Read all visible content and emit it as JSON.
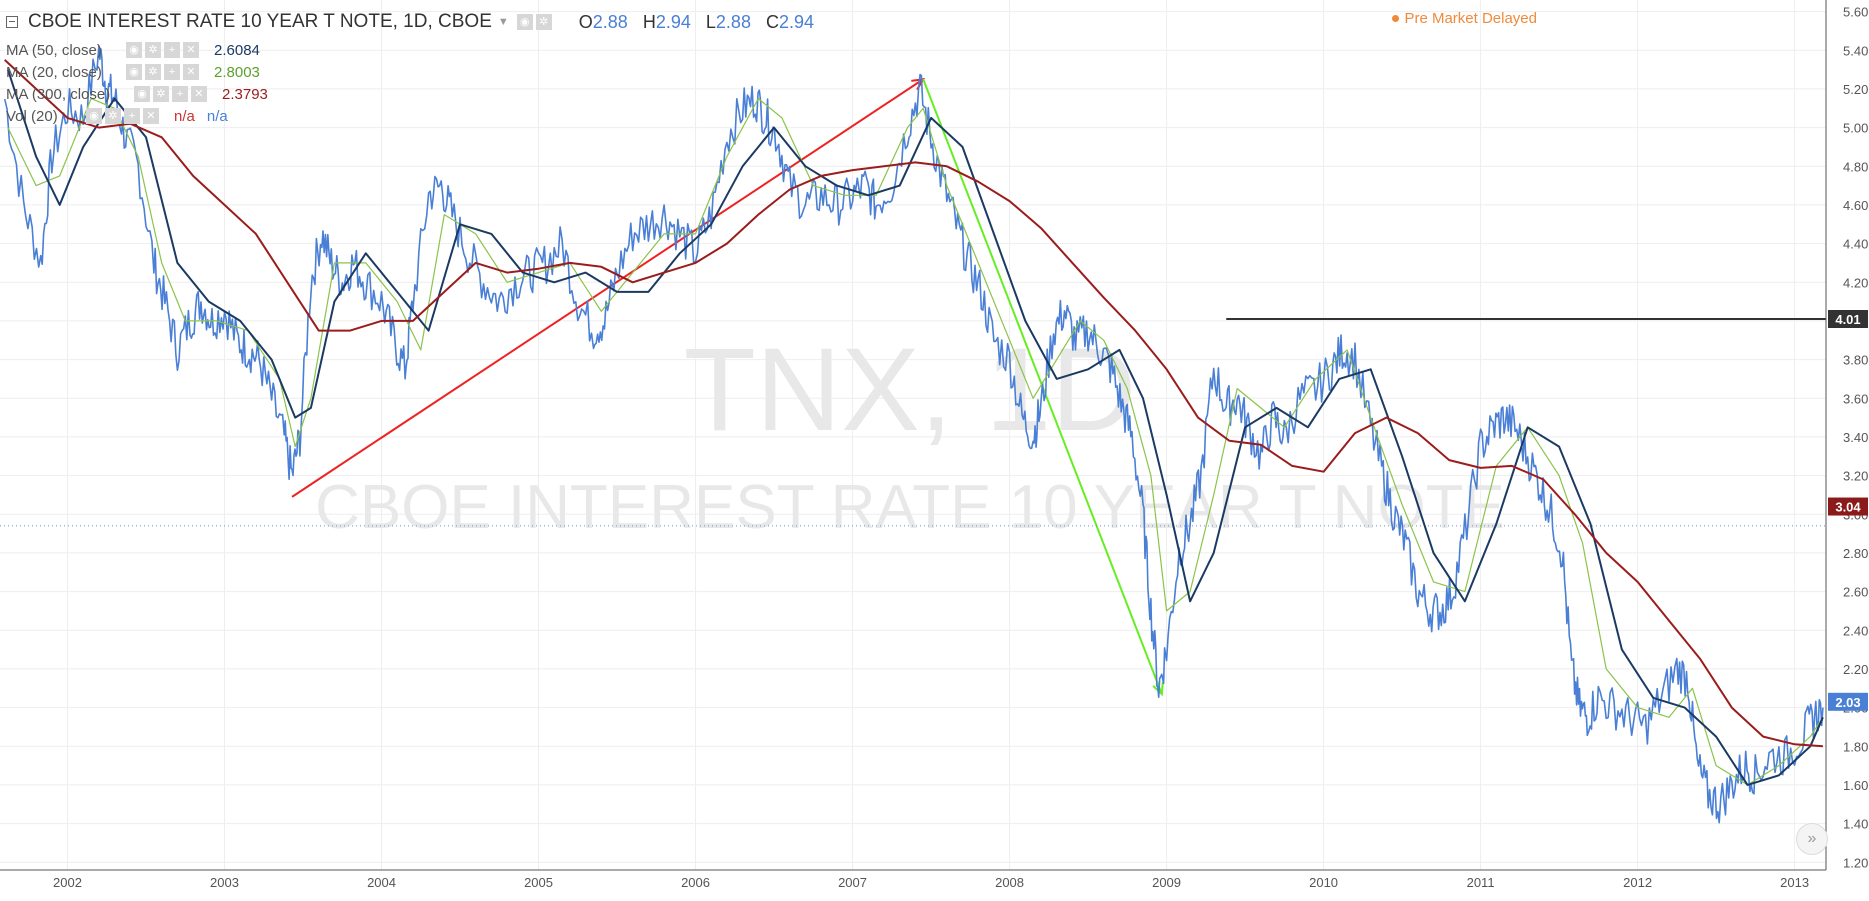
{
  "header": {
    "title": "CBOE INTEREST RATE 10 YEAR T NOTE, 1D, CBOE",
    "ohlc": [
      {
        "key": "O",
        "value": "2.88"
      },
      {
        "key": "H",
        "value": "2.94"
      },
      {
        "key": "L",
        "value": "2.88"
      },
      {
        "key": "C",
        "value": "2.94"
      }
    ],
    "status": "Pre Market  Delayed"
  },
  "studies": [
    {
      "label": "MA (50, close)",
      "value": "2.6084",
      "color": "#1b3a63"
    },
    {
      "label": "MA (20, close)",
      "value": "2.8003",
      "color": "#5aa02c"
    },
    {
      "label": "MA (300, close)",
      "value": "2.3793",
      "color": "#9b1c1c"
    },
    {
      "label": "Vol (20)",
      "value": "n/a",
      "value2": "n/a",
      "color": "#cc3333",
      "color2": "#4a7fd6"
    }
  ],
  "watermark": {
    "symbol": "TNX, 1D",
    "description": "CBOE INTEREST RATE 10 YEAR T NOTE"
  },
  "colors": {
    "price": "#4a7fd6",
    "ma20": "#8bc34a",
    "ma50": "#1b3a63",
    "ma300": "#9b1c1c",
    "trend_up": "#ee2222",
    "trend_down": "#66ee22",
    "hline": "#333333",
    "grid": "#eeeeee"
  },
  "chart_data": {
    "type": "line",
    "yaxis_ticks": [
      "1.20",
      "1.40",
      "1.60",
      "1.80",
      "2.00",
      "2.20",
      "2.40",
      "2.60",
      "2.80",
      "3.00",
      "3.20",
      "3.40",
      "3.60",
      "3.80",
      "4.00",
      "4.20",
      "4.40",
      "4.60",
      "4.80",
      "5.00",
      "5.20",
      "5.40",
      "5.60"
    ],
    "ylim": [
      1.16,
      5.66
    ],
    "xaxis_ticks": [
      "2002",
      "2003",
      "2004",
      "2005",
      "2006",
      "2007",
      "2008",
      "2009",
      "2010",
      "2011",
      "2012",
      "2013"
    ],
    "xlim": [
      2001.57,
      2013.2
    ],
    "grid": true,
    "series": [
      {
        "name": "TNX",
        "x": [
          2001.6,
          2001.72,
          2001.83,
          2001.9,
          2002.0,
          2002.1,
          2002.2,
          2002.25,
          2002.3,
          2002.37,
          2002.45,
          2002.55,
          2002.62,
          2002.7,
          2002.78,
          2002.85,
          2002.92,
          2003.0,
          2003.08,
          2003.15,
          2003.22,
          2003.3,
          2003.38,
          2003.43,
          2003.48,
          2003.55,
          2003.62,
          2003.68,
          2003.75,
          2003.82,
          2003.9,
          2004.0,
          2004.08,
          2004.15,
          2004.2,
          2004.3,
          2004.38,
          2004.45,
          2004.55,
          2004.65,
          2004.75,
          2004.85,
          2004.95,
          2005.05,
          2005.15,
          2005.25,
          2005.35,
          2005.42,
          2005.5,
          2005.6,
          2005.7,
          2005.8,
          2005.9,
          2006.0,
          2006.1,
          2006.2,
          2006.3,
          2006.38,
          2006.45,
          2006.52,
          2006.6,
          2006.7,
          2006.8,
          2006.9,
          2007.0,
          2007.08,
          2007.15,
          2007.25,
          2007.35,
          2007.43,
          2007.5,
          2007.58,
          2007.66,
          2007.74,
          2007.82,
          2007.9,
          2008.0,
          2008.08,
          2008.15,
          2008.2,
          2008.28,
          2008.35,
          2008.42,
          2008.5,
          2008.58,
          2008.65,
          2008.72,
          2008.78,
          2008.85,
          2008.9,
          2008.95,
          2009.0,
          2009.08,
          2009.15,
          2009.22,
          2009.3,
          2009.38,
          2009.45,
          2009.52,
          2009.6,
          2009.68,
          2009.75,
          2009.85,
          2009.95,
          2010.05,
          2010.12,
          2010.2,
          2010.3,
          2010.38,
          2010.45,
          2010.52,
          2010.6,
          2010.68,
          2010.75,
          2010.82,
          2010.9,
          2011.0,
          2011.08,
          2011.15,
          2011.22,
          2011.3,
          2011.38,
          2011.45,
          2011.52,
          2011.58,
          2011.63,
          2011.68,
          2011.75,
          2011.85,
          2011.95,
          2012.05,
          2012.15,
          2012.25,
          2012.32,
          2012.38,
          2012.45,
          2012.52,
          2012.6,
          2012.68,
          2012.75,
          2012.85,
          2012.95,
          2013.05,
          2013.12,
          2013.18
        ],
        "values": [
          5.15,
          4.6,
          4.3,
          4.85,
          5.1,
          5.05,
          5.4,
          5.2,
          5.15,
          4.95,
          4.8,
          4.3,
          4.1,
          3.85,
          4.0,
          4.1,
          4.0,
          4.05,
          3.9,
          3.85,
          3.8,
          3.6,
          3.4,
          3.2,
          3.4,
          4.2,
          4.45,
          4.3,
          4.2,
          4.3,
          4.2,
          4.1,
          3.9,
          3.75,
          4.1,
          4.65,
          4.7,
          4.55,
          4.35,
          4.2,
          4.1,
          4.2,
          4.25,
          4.3,
          4.4,
          4.1,
          3.95,
          4.0,
          4.25,
          4.45,
          4.5,
          4.55,
          4.45,
          4.35,
          4.55,
          4.95,
          5.1,
          5.15,
          5.05,
          4.95,
          4.7,
          4.6,
          4.65,
          4.6,
          4.65,
          4.7,
          4.6,
          4.7,
          5.0,
          5.2,
          4.95,
          4.7,
          4.5,
          4.3,
          4.15,
          3.9,
          3.8,
          3.5,
          3.4,
          3.55,
          3.95,
          4.05,
          3.9,
          3.95,
          3.85,
          3.75,
          3.55,
          3.4,
          3.0,
          2.5,
          2.1,
          2.3,
          2.8,
          2.95,
          3.2,
          3.75,
          3.55,
          3.6,
          3.45,
          3.3,
          3.5,
          3.4,
          3.6,
          3.65,
          3.75,
          3.85,
          3.8,
          3.45,
          3.2,
          3.0,
          2.85,
          2.6,
          2.5,
          2.5,
          2.6,
          2.9,
          3.35,
          3.45,
          3.5,
          3.45,
          3.3,
          3.15,
          3.0,
          2.8,
          2.2,
          2.0,
          1.95,
          2.05,
          2.0,
          1.95,
          1.9,
          2.05,
          2.2,
          2.15,
          1.7,
          1.55,
          1.5,
          1.6,
          1.7,
          1.65,
          1.75,
          1.75,
          1.85,
          1.95,
          2.0
        ]
      },
      {
        "name": "MA (20, close)",
        "x": [
          2001.62,
          2001.8,
          2001.95,
          2002.15,
          2002.3,
          2002.45,
          2002.6,
          2002.75,
          2002.95,
          2003.15,
          2003.35,
          2003.45,
          2003.55,
          2003.7,
          2003.9,
          2004.1,
          2004.25,
          2004.4,
          2004.6,
          2004.8,
          2005.0,
          2005.2,
          2005.4,
          2005.6,
          2005.8,
          2006.0,
          2006.2,
          2006.4,
          2006.55,
          2006.75,
          2006.95,
          2007.15,
          2007.35,
          2007.45,
          2007.6,
          2007.8,
          2008.0,
          2008.15,
          2008.3,
          2008.45,
          2008.6,
          2008.75,
          2008.9,
          2009.0,
          2009.15,
          2009.3,
          2009.45,
          2009.6,
          2009.75,
          2009.95,
          2010.15,
          2010.3,
          2010.5,
          2010.7,
          2010.9,
          2011.1,
          2011.3,
          2011.5,
          2011.65,
          2011.8,
          2012.0,
          2012.2,
          2012.35,
          2012.5,
          2012.7,
          2012.9,
          2013.1,
          2013.18
        ],
        "values": [
          5.0,
          4.7,
          4.75,
          5.15,
          5.1,
          4.85,
          4.3,
          4.0,
          4.0,
          3.95,
          3.7,
          3.35,
          3.6,
          4.3,
          4.3,
          4.1,
          3.85,
          4.55,
          4.45,
          4.2,
          4.25,
          4.3,
          4.05,
          4.25,
          4.45,
          4.45,
          4.85,
          5.15,
          5.05,
          4.7,
          4.65,
          4.65,
          5.0,
          5.1,
          4.7,
          4.3,
          3.9,
          3.6,
          3.8,
          4.0,
          3.9,
          3.65,
          3.2,
          2.5,
          2.6,
          3.1,
          3.65,
          3.55,
          3.45,
          3.7,
          3.85,
          3.5,
          3.05,
          2.65,
          2.6,
          3.25,
          3.45,
          3.2,
          2.85,
          2.2,
          2.0,
          1.95,
          2.1,
          1.7,
          1.6,
          1.7,
          1.85,
          1.95
        ]
      },
      {
        "name": "MA (50, close)",
        "x": [
          2001.62,
          2001.8,
          2001.95,
          2002.1,
          2002.3,
          2002.5,
          2002.7,
          2002.9,
          2003.1,
          2003.3,
          2003.45,
          2003.55,
          2003.7,
          2003.9,
          2004.1,
          2004.3,
          2004.5,
          2004.7,
          2004.9,
          2005.1,
          2005.3,
          2005.5,
          2005.7,
          2005.9,
          2006.1,
          2006.3,
          2006.5,
          2006.7,
          2006.9,
          2007.1,
          2007.3,
          2007.5,
          2007.7,
          2007.9,
          2008.1,
          2008.3,
          2008.5,
          2008.7,
          2008.85,
          2009.0,
          2009.15,
          2009.3,
          2009.5,
          2009.7,
          2009.9,
          2010.1,
          2010.3,
          2010.5,
          2010.7,
          2010.9,
          2011.1,
          2011.3,
          2011.5,
          2011.7,
          2011.9,
          2012.1,
          2012.3,
          2012.5,
          2012.7,
          2012.9,
          2013.1,
          2013.18
        ],
        "values": [
          5.3,
          4.85,
          4.6,
          4.9,
          5.15,
          4.95,
          4.3,
          4.1,
          4.0,
          3.8,
          3.5,
          3.55,
          4.1,
          4.35,
          4.15,
          3.95,
          4.5,
          4.45,
          4.25,
          4.2,
          4.25,
          4.15,
          4.15,
          4.35,
          4.5,
          4.8,
          5.0,
          4.8,
          4.7,
          4.65,
          4.7,
          5.05,
          4.9,
          4.45,
          4.0,
          3.7,
          3.75,
          3.85,
          3.6,
          3.1,
          2.55,
          2.8,
          3.45,
          3.55,
          3.45,
          3.7,
          3.75,
          3.3,
          2.8,
          2.55,
          2.95,
          3.45,
          3.35,
          2.95,
          2.3,
          2.05,
          2.0,
          1.85,
          1.6,
          1.65,
          1.8,
          1.95
        ]
      },
      {
        "name": "MA (300, close)",
        "x": [
          2001.6,
          2001.8,
          2002.0,
          2002.2,
          2002.4,
          2002.6,
          2002.8,
          2003.0,
          2003.2,
          2003.4,
          2003.6,
          2003.8,
          2004.0,
          2004.2,
          2004.4,
          2004.6,
          2004.8,
          2005.0,
          2005.2,
          2005.4,
          2005.6,
          2005.8,
          2006.0,
          2006.2,
          2006.4,
          2006.6,
          2006.8,
          2007.0,
          2007.2,
          2007.4,
          2007.6,
          2007.8,
          2008.0,
          2008.2,
          2008.4,
          2008.6,
          2008.8,
          2009.0,
          2009.2,
          2009.4,
          2009.6,
          2009.8,
          2010.0,
          2010.2,
          2010.4,
          2010.6,
          2010.8,
          2011.0,
          2011.2,
          2011.4,
          2011.6,
          2011.8,
          2012.0,
          2012.2,
          2012.4,
          2012.6,
          2012.8,
          2013.0,
          2013.18
        ],
        "values": [
          5.35,
          5.2,
          5.05,
          5.0,
          5.02,
          4.95,
          4.75,
          4.6,
          4.45,
          4.2,
          3.95,
          3.95,
          4.0,
          4.0,
          4.15,
          4.3,
          4.25,
          4.27,
          4.3,
          4.28,
          4.2,
          4.25,
          4.3,
          4.4,
          4.55,
          4.68,
          4.75,
          4.78,
          4.8,
          4.82,
          4.8,
          4.72,
          4.62,
          4.48,
          4.3,
          4.12,
          3.95,
          3.75,
          3.5,
          3.38,
          3.36,
          3.25,
          3.22,
          3.42,
          3.5,
          3.42,
          3.28,
          3.24,
          3.25,
          3.18,
          3.0,
          2.8,
          2.65,
          2.45,
          2.25,
          2.0,
          1.85,
          1.81,
          1.8
        ]
      }
    ],
    "annotations": [
      {
        "type": "trend_line",
        "x1": 2003.43,
        "y1": 3.09,
        "x2": 2007.45,
        "y2": 5.25,
        "color": "#ee2222"
      },
      {
        "type": "trend_line",
        "x1": 2007.45,
        "y1": 5.25,
        "x2": 2008.97,
        "y2": 2.07,
        "color": "#66ee22"
      },
      {
        "type": "horizontal_line",
        "x_start": 2009.38,
        "y": 4.01
      },
      {
        "type": "dotted_line",
        "y": 2.94
      }
    ],
    "price_labels": [
      {
        "text": "4.01",
        "value": 4.01,
        "bg": "#333333"
      },
      {
        "text": "3.04",
        "value": 3.04,
        "bg": "#8b1a1a"
      },
      {
        "text": "2.03",
        "value": 2.03,
        "bg": "#4a7fd6"
      }
    ]
  }
}
